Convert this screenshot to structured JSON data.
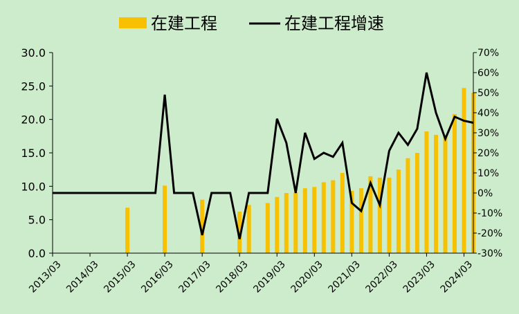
{
  "chart_data": {
    "type": "bar",
    "legend_position": "top",
    "grid": false,
    "colors": {
      "background": "#cdeccb",
      "bar": "#f7c000",
      "line": "#000000",
      "axis": "#000000"
    },
    "series": [
      {
        "name": "在建工程",
        "type": "bar",
        "axis": "left",
        "points": [
          {
            "x": "2015/03",
            "y": 6.8
          },
          {
            "x": "2016/03",
            "y": 10.1
          },
          {
            "x": "2017/03",
            "y": 8.0
          },
          {
            "x": "2018/03",
            "y": 6.2
          },
          {
            "x": "2018/06",
            "y": 7.2
          },
          {
            "x": "2018/12",
            "y": 7.5
          },
          {
            "x": "2019/03",
            "y": 8.4
          },
          {
            "x": "2019/06",
            "y": 9.0
          },
          {
            "x": "2019/09",
            "y": 9.1
          },
          {
            "x": "2019/12",
            "y": 9.7
          },
          {
            "x": "2020/03",
            "y": 9.9
          },
          {
            "x": "2020/06",
            "y": 10.6
          },
          {
            "x": "2020/09",
            "y": 10.9
          },
          {
            "x": "2020/12",
            "y": 12.0
          },
          {
            "x": "2021/03",
            "y": 9.3
          },
          {
            "x": "2021/06",
            "y": 9.7
          },
          {
            "x": "2021/09",
            "y": 11.5
          },
          {
            "x": "2021/12",
            "y": 11.3
          },
          {
            "x": "2022/03",
            "y": 11.3
          },
          {
            "x": "2022/06",
            "y": 12.5
          },
          {
            "x": "2022/09",
            "y": 14.2
          },
          {
            "x": "2022/12",
            "y": 15.0
          },
          {
            "x": "2023/03",
            "y": 18.2
          },
          {
            "x": "2023/06",
            "y": 17.7
          },
          {
            "x": "2023/09",
            "y": 17.6
          },
          {
            "x": "2023/12",
            "y": 20.8
          },
          {
            "x": "2024/03",
            "y": 24.7
          },
          {
            "x": "2024/06",
            "y": 24.0
          }
        ]
      },
      {
        "name": "在建工程增速",
        "type": "line",
        "axis": "right",
        "unit": "%",
        "points": [
          {
            "x": "2013/03",
            "y": 0
          },
          {
            "x": "2015/12",
            "y": 0
          },
          {
            "x": "2016/03",
            "y": 49
          },
          {
            "x": "2016/06",
            "y": 0
          },
          {
            "x": "2016/12",
            "y": 0
          },
          {
            "x": "2017/03",
            "y": -21
          },
          {
            "x": "2017/06",
            "y": 0
          },
          {
            "x": "2017/12",
            "y": 0
          },
          {
            "x": "2018/03",
            "y": -23
          },
          {
            "x": "2018/06",
            "y": 0
          },
          {
            "x": "2018/12",
            "y": 0
          },
          {
            "x": "2019/03",
            "y": 37
          },
          {
            "x": "2019/06",
            "y": 25
          },
          {
            "x": "2019/09",
            "y": 0
          },
          {
            "x": "2019/12",
            "y": 30
          },
          {
            "x": "2020/03",
            "y": 17
          },
          {
            "x": "2020/06",
            "y": 20
          },
          {
            "x": "2020/09",
            "y": 18
          },
          {
            "x": "2020/12",
            "y": 25
          },
          {
            "x": "2021/03",
            "y": -5
          },
          {
            "x": "2021/06",
            "y": -9
          },
          {
            "x": "2021/09",
            "y": 5
          },
          {
            "x": "2021/12",
            "y": -6
          },
          {
            "x": "2022/03",
            "y": 21
          },
          {
            "x": "2022/06",
            "y": 30
          },
          {
            "x": "2022/09",
            "y": 24
          },
          {
            "x": "2022/12",
            "y": 32
          },
          {
            "x": "2023/03",
            "y": 60
          },
          {
            "x": "2023/06",
            "y": 40
          },
          {
            "x": "2023/09",
            "y": 27
          },
          {
            "x": "2023/12",
            "y": 38
          },
          {
            "x": "2024/03",
            "y": 36
          },
          {
            "x": "2024/06",
            "y": 35
          }
        ]
      }
    ],
    "x_start": "2013/03",
    "x_end": "2024/06",
    "x_ticks": [
      "2013/03",
      "2014/03",
      "2015/03",
      "2016/03",
      "2017/03",
      "2018/03",
      "2019/03",
      "2020/03",
      "2021/03",
      "2022/03",
      "2023/03",
      "2024/03"
    ],
    "y_left": {
      "min": 0,
      "max": 30,
      "step": 5,
      "tick_labels": [
        "0.0",
        "5.0",
        "10.0",
        "15.0",
        "20.0",
        "25.0",
        "30.0"
      ]
    },
    "y_right": {
      "min": -30,
      "max": 70,
      "step": 10,
      "tick_labels": [
        "-30%",
        "-20%",
        "-10%",
        "0%",
        "10%",
        "20%",
        "30%",
        "40%",
        "50%",
        "60%",
        "70%"
      ]
    }
  }
}
